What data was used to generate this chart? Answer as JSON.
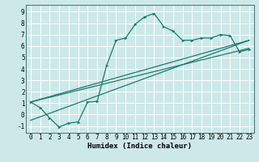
{
  "xlabel": "Humidex (Indice chaleur)",
  "background_color": "#cde8e8",
  "line_color": "#1a7a6e",
  "grid_color": "#b0d8d8",
  "xlim": [
    -0.5,
    23.5
  ],
  "ylim": [
    -1.6,
    9.6
  ],
  "xticks": [
    0,
    1,
    2,
    3,
    4,
    5,
    6,
    7,
    8,
    9,
    10,
    11,
    12,
    13,
    14,
    15,
    16,
    17,
    18,
    19,
    20,
    21,
    22,
    23
  ],
  "yticks": [
    -1,
    0,
    1,
    2,
    3,
    4,
    5,
    6,
    7,
    8,
    9
  ],
  "curve1_x": [
    0,
    1,
    2,
    3,
    4,
    5,
    6,
    7,
    8,
    9,
    10,
    11,
    12,
    13,
    14,
    15,
    16,
    17,
    18,
    19,
    20,
    21,
    22,
    23
  ],
  "curve1_y": [
    1.1,
    0.6,
    -0.3,
    -1.1,
    -0.75,
    -0.65,
    1.1,
    1.15,
    4.3,
    6.5,
    6.7,
    7.9,
    8.55,
    8.85,
    7.7,
    7.3,
    6.5,
    6.5,
    6.7,
    6.7,
    7.0,
    6.9,
    5.5,
    5.7
  ],
  "curve2_x": [
    0,
    23
  ],
  "curve2_y": [
    -0.5,
    6.5
  ],
  "curve3_x": [
    0,
    23
  ],
  "curve3_y": [
    1.1,
    5.8
  ],
  "curve4_x": [
    0,
    23
  ],
  "curve4_y": [
    1.1,
    6.5
  ]
}
